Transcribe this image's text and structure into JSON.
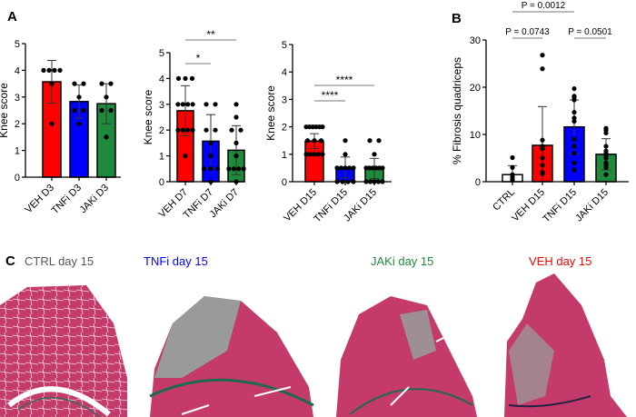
{
  "panels": {
    "a": "A",
    "b": "B",
    "c": "C"
  },
  "colors": {
    "veh": "#ff0000",
    "tnfi": "#0000ff",
    "jaki": "#1e8a3c",
    "ctrl": "#ffffff"
  },
  "chart_data": [
    {
      "type": "bar",
      "panel": "A",
      "ylabel": "Knee score",
      "ylim": [
        0,
        5
      ],
      "yticks": [
        0,
        1,
        2,
        3,
        4,
        5
      ],
      "categories": [
        "VEH D3",
        "TNFi D3",
        "JAKi D3"
      ],
      "values": [
        3.57,
        2.83,
        2.75
      ],
      "sd": [
        0.8,
        0.62,
        0.75
      ],
      "points": [
        [
          4,
          4,
          4,
          4,
          3.5,
          2
        ],
        [
          3.5,
          3.5,
          3,
          2.5,
          2.5,
          2
        ],
        [
          3.5,
          3.5,
          3,
          2.5,
          2.5,
          1.5
        ]
      ],
      "bar_colors": [
        "#ff0000",
        "#0000ff",
        "#1e8a3c"
      ],
      "significance": []
    },
    {
      "type": "bar",
      "panel": "A",
      "ylabel": "Knee score",
      "ylim": [
        0,
        5
      ],
      "yticks": [
        0,
        1,
        2,
        3,
        4,
        5
      ],
      "categories": [
        "VEH D7",
        "TNFi D7",
        "JAKi D7"
      ],
      "values": [
        2.75,
        1.57,
        1.22
      ],
      "sd": [
        0.97,
        1.03,
        0.95
      ],
      "points": [
        [
          4,
          4,
          4,
          3,
          3,
          3,
          3,
          2,
          2,
          2,
          2,
          1
        ],
        [
          3,
          3,
          2,
          2,
          1.5,
          1,
          0.5,
          0.5,
          0.5,
          0
        ],
        [
          3,
          2.5,
          2,
          2,
          1.5,
          1,
          0.5,
          0.5,
          0.5,
          0.5,
          0
        ]
      ],
      "bar_colors": [
        "#ff0000",
        "#0000ff",
        "#1e8a3c"
      ],
      "significance": [
        {
          "from": 0,
          "to": 1,
          "label": "*"
        },
        {
          "from": 0,
          "to": 2,
          "label": "**"
        }
      ]
    },
    {
      "type": "bar",
      "panel": "A",
      "ylabel": "Knee score",
      "ylim": [
        0,
        5
      ],
      "yticks": [
        0,
        1,
        2,
        3,
        4,
        5
      ],
      "categories": [
        "VEH D15",
        "TNFi D15",
        "JAKi D15"
      ],
      "values": [
        1.48,
        0.52,
        0.48
      ],
      "sd": [
        0.27,
        0.38,
        0.37
      ],
      "points": [
        [
          2,
          2,
          2,
          2,
          2,
          2,
          1.5,
          1.5,
          1.5,
          1,
          1,
          1,
          1,
          1
        ],
        [
          1.5,
          1,
          0.5,
          0.5,
          0.5,
          0.5,
          0.5,
          0,
          0,
          0,
          0
        ],
        [
          1.5,
          1.5,
          1,
          0.5,
          0.5,
          0.5,
          0.5,
          0.5,
          0.5,
          0,
          0,
          0,
          0,
          0
        ]
      ],
      "bar_colors": [
        "#ff0000",
        "#0000ff",
        "#1e8a3c"
      ],
      "significance": [
        {
          "from": 0,
          "to": 1,
          "label": "****"
        },
        {
          "from": 0,
          "to": 2,
          "label": "****"
        }
      ]
    },
    {
      "type": "bar",
      "panel": "B",
      "ylabel": "% Fibrosis quadriceps",
      "ylim": [
        0,
        30
      ],
      "yticks": [
        0,
        10,
        20,
        30
      ],
      "categories": [
        "CTRL",
        "VEH D15",
        "TNFi D15",
        "JAKi D15"
      ],
      "values": [
        1.5,
        7.7,
        11.6,
        5.8
      ],
      "sd": [
        1.9,
        8.2,
        5.7,
        3.3
      ],
      "points": [
        [
          5.1,
          3,
          1.5,
          1,
          0.5,
          0.3
        ],
        [
          26.8,
          23.9,
          8.8,
          7.5,
          7,
          5,
          3.5,
          2,
          1.7
        ],
        [
          19.7,
          18.1,
          17.8,
          17.3,
          14.7,
          13.5,
          12.8,
          9,
          7.5,
          6,
          4,
          2.5
        ],
        [
          11.3,
          10.9,
          10.3,
          7.5,
          6.5,
          6,
          5.5,
          5,
          4,
          3.5,
          3,
          1.5
        ]
      ],
      "bar_colors": [
        "#ffffff",
        "#ff0000",
        "#0000ff",
        "#1e8a3c"
      ],
      "significance": [
        {
          "from": 0,
          "to": 1,
          "label": "P = 0.0743"
        },
        {
          "from": 2,
          "to": 3,
          "label": "P = 0.0501"
        },
        {
          "from": 0,
          "to": 2,
          "label": "P = 0.0012"
        }
      ]
    }
  ],
  "histology": [
    {
      "label": "CTRL day 15",
      "color": "#555555"
    },
    {
      "label": "TNFi day 15",
      "color": "#0000ff"
    },
    {
      "label": "JAKi day 15",
      "color": "#1e8a3c"
    },
    {
      "label": "VEH day 15",
      "color": "#ff0000"
    }
  ]
}
